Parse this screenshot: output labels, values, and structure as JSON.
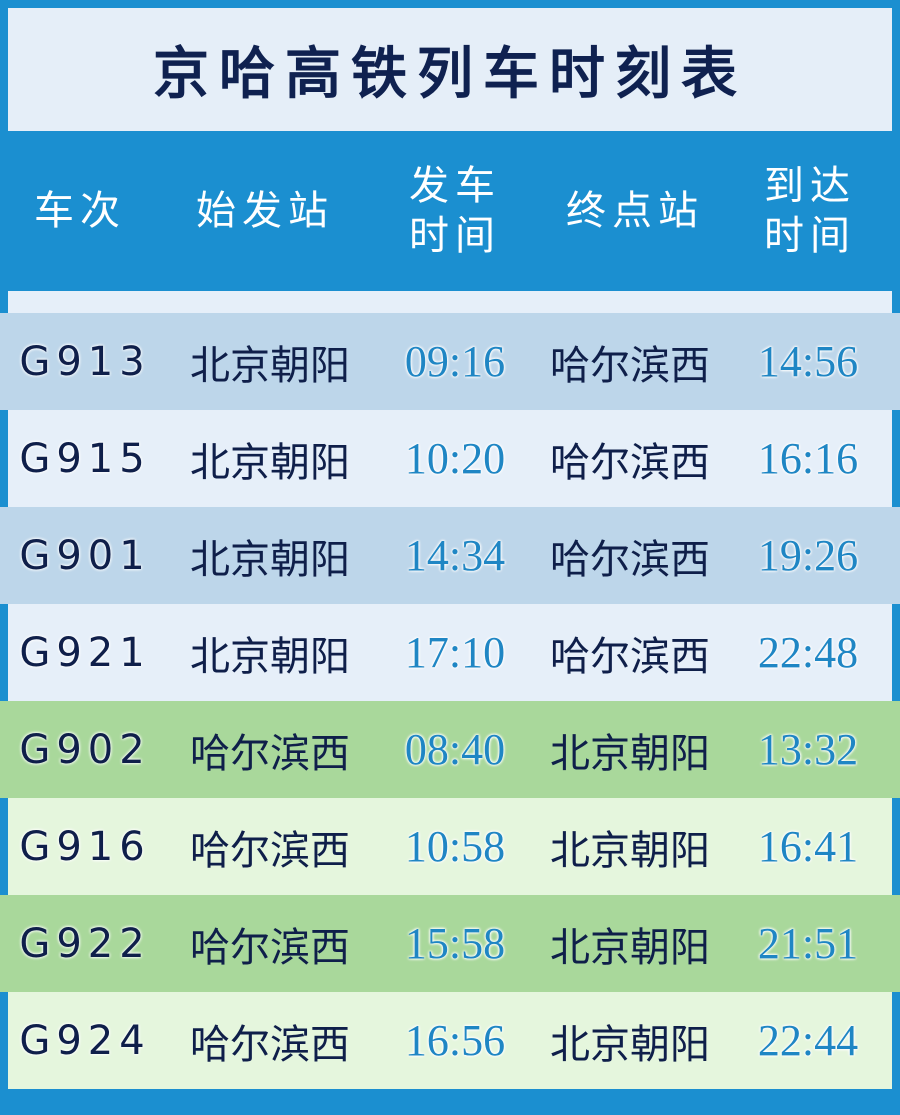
{
  "title": "京哈高铁列车时刻表",
  "colors": {
    "background": "#1b8fd0",
    "title_text": "#0f2150",
    "time_text": "#1f86c4",
    "beijing_row_dark": "#bdd6ea",
    "beijing_row_light": "#e6eff9",
    "harbin_row_dark": "#a9d89b",
    "harbin_row_light": "#e5f6dd"
  },
  "headers": {
    "train": "车次",
    "origin": "始发站",
    "depart_line1": "发车",
    "depart_line2": "时间",
    "destination": "终点站",
    "arrive_line1": "到达",
    "arrive_line2": "时间"
  },
  "rows": [
    {
      "train": "G913",
      "origin": "北京朝阳",
      "depart": "09:16",
      "destination": "哈尔滨西",
      "arrive": "14:56"
    },
    {
      "train": "G915",
      "origin": "北京朝阳",
      "depart": "10:20",
      "destination": "哈尔滨西",
      "arrive": "16:16"
    },
    {
      "train": "G901",
      "origin": "北京朝阳",
      "depart": "14:34",
      "destination": "哈尔滨西",
      "arrive": "19:26"
    },
    {
      "train": "G921",
      "origin": "北京朝阳",
      "depart": "17:10",
      "destination": "哈尔滨西",
      "arrive": "22:48"
    },
    {
      "train": "G902",
      "origin": "哈尔滨西",
      "depart": "08:40",
      "destination": "北京朝阳",
      "arrive": "13:32"
    },
    {
      "train": "G916",
      "origin": "哈尔滨西",
      "depart": "10:58",
      "destination": "北京朝阳",
      "arrive": "16:41"
    },
    {
      "train": "G922",
      "origin": "哈尔滨西",
      "depart": "15:58",
      "destination": "北京朝阳",
      "arrive": "21:51"
    },
    {
      "train": "G924",
      "origin": "哈尔滨西",
      "depart": "16:56",
      "destination": "北京朝阳",
      "arrive": "22:44"
    }
  ]
}
